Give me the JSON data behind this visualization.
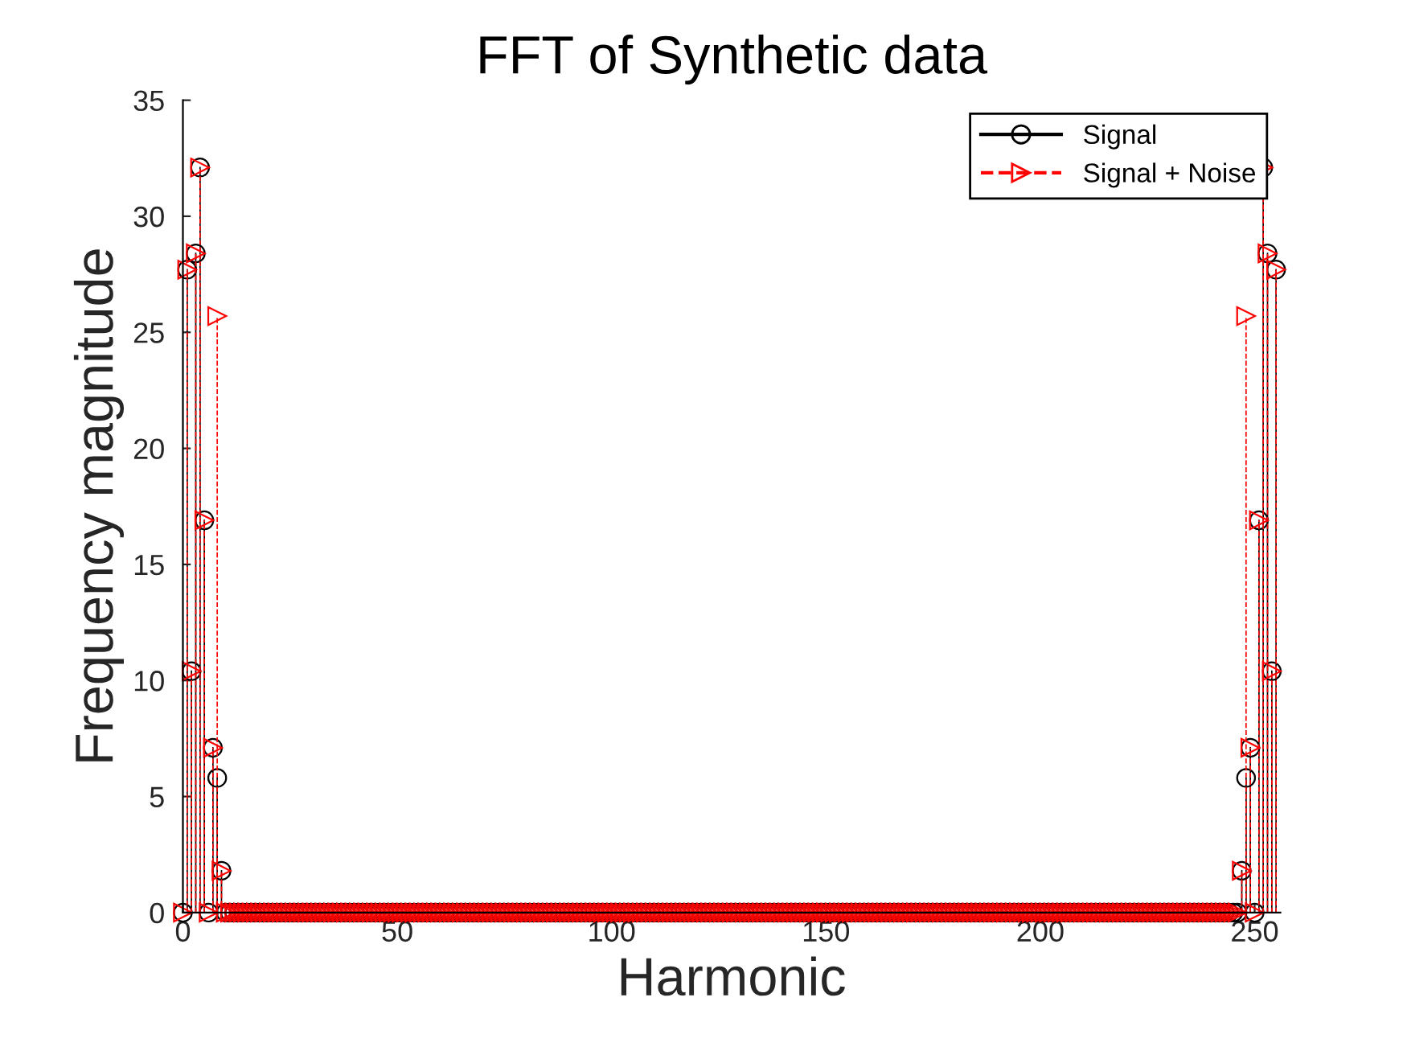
{
  "chart_data": {
    "type": "lollipop",
    "title": "FFT of Synthetic data",
    "xlabel": "Harmonic",
    "ylabel": "Frequency magnitude",
    "x": [
      0,
      1,
      2,
      3,
      4,
      5,
      6,
      7,
      8,
      9,
      10,
      11,
      12,
      13,
      14,
      15,
      16,
      17,
      18,
      19,
      20,
      21,
      22,
      23,
      24,
      25,
      26,
      27,
      28,
      29,
      30,
      31,
      32,
      33,
      34,
      35,
      36,
      37,
      38,
      39,
      40,
      41,
      42,
      43,
      44,
      45,
      46,
      47,
      48,
      49,
      50,
      51,
      52,
      53,
      54,
      55,
      56,
      57,
      58,
      59,
      60,
      61,
      62,
      63,
      64,
      65,
      66,
      67,
      68,
      69,
      70,
      71,
      72,
      73,
      74,
      75,
      76,
      77,
      78,
      79,
      80,
      81,
      82,
      83,
      84,
      85,
      86,
      87,
      88,
      89,
      90,
      91,
      92,
      93,
      94,
      95,
      96,
      97,
      98,
      99,
      100,
      101,
      102,
      103,
      104,
      105,
      106,
      107,
      108,
      109,
      110,
      111,
      112,
      113,
      114,
      115,
      116,
      117,
      118,
      119,
      120,
      121,
      122,
      123,
      124,
      125,
      126,
      127,
      128,
      129,
      130,
      131,
      132,
      133,
      134,
      135,
      136,
      137,
      138,
      139,
      140,
      141,
      142,
      143,
      144,
      145,
      146,
      147,
      148,
      149,
      150,
      151,
      152,
      153,
      154,
      155,
      156,
      157,
      158,
      159,
      160,
      161,
      162,
      163,
      164,
      165,
      166,
      167,
      168,
      169,
      170,
      171,
      172,
      173,
      174,
      175,
      176,
      177,
      178,
      179,
      180,
      181,
      182,
      183,
      184,
      185,
      186,
      187,
      188,
      189,
      190,
      191,
      192,
      193,
      194,
      195,
      196,
      197,
      198,
      199,
      200,
      201,
      202,
      203,
      204,
      205,
      206,
      207,
      208,
      209,
      210,
      211,
      212,
      213,
      214,
      215,
      216,
      217,
      218,
      219,
      220,
      221,
      222,
      223,
      224,
      225,
      226,
      227,
      228,
      229,
      230,
      231,
      232,
      233,
      234,
      235,
      236,
      237,
      238,
      239,
      240,
      241,
      242,
      243,
      244,
      245,
      246,
      247,
      248,
      249,
      250,
      251,
      252,
      253,
      254,
      255
    ],
    "series": [
      {
        "name": "Signal",
        "color": "#000000",
        "marker": "circle",
        "line_style": "solid",
        "values": [
          0,
          27.7,
          10.4,
          28.4,
          32.1,
          16.9,
          0,
          7.1,
          5.8,
          1.8,
          0,
          0,
          0,
          0,
          0,
          0,
          0,
          0,
          0,
          0,
          0,
          0,
          0,
          0,
          0,
          0,
          0,
          0,
          0,
          0,
          0,
          0,
          0,
          0,
          0,
          0,
          0,
          0,
          0,
          0,
          0,
          0,
          0,
          0,
          0,
          0,
          0,
          0,
          0,
          0,
          0,
          0,
          0,
          0,
          0,
          0,
          0,
          0,
          0,
          0,
          0,
          0,
          0,
          0,
          0,
          0,
          0,
          0,
          0,
          0,
          0,
          0,
          0,
          0,
          0,
          0,
          0,
          0,
          0,
          0,
          0,
          0,
          0,
          0,
          0,
          0,
          0,
          0,
          0,
          0,
          0,
          0,
          0,
          0,
          0,
          0,
          0,
          0,
          0,
          0,
          0,
          0,
          0,
          0,
          0,
          0,
          0,
          0,
          0,
          0,
          0,
          0,
          0,
          0,
          0,
          0,
          0,
          0,
          0,
          0,
          0,
          0,
          0,
          0,
          0,
          0,
          0,
          0,
          0,
          0,
          0,
          0,
          0,
          0,
          0,
          0,
          0,
          0,
          0,
          0,
          0,
          0,
          0,
          0,
          0,
          0,
          0,
          0,
          0,
          0,
          0,
          0,
          0,
          0,
          0,
          0,
          0,
          0,
          0,
          0,
          0,
          0,
          0,
          0,
          0,
          0,
          0,
          0,
          0,
          0,
          0,
          0,
          0,
          0,
          0,
          0,
          0,
          0,
          0,
          0,
          0,
          0,
          0,
          0,
          0,
          0,
          0,
          0,
          0,
          0,
          0,
          0,
          0,
          0,
          0,
          0,
          0,
          0,
          0,
          0,
          0,
          0,
          0,
          0,
          0,
          0,
          0,
          0,
          0,
          0,
          0,
          0,
          0,
          0,
          0,
          0,
          0,
          0,
          0,
          0,
          0,
          0,
          0,
          0,
          0,
          0,
          0,
          0,
          0,
          0,
          0,
          0,
          0,
          0,
          0,
          0,
          0,
          0,
          0,
          0,
          0,
          0,
          0,
          0,
          0,
          0,
          0,
          1.8,
          5.8,
          7.1,
          0,
          16.9,
          32.1,
          28.4,
          10.4,
          27.7
        ]
      },
      {
        "name": "Signal + Noise",
        "color": "#ff0000",
        "marker": "triangle",
        "line_style": "dashed",
        "values": [
          0,
          27.7,
          10.4,
          28.4,
          32.1,
          16.9,
          0,
          7.1,
          25.7,
          1.8,
          0,
          0,
          0,
          0,
          0,
          0,
          0,
          0,
          0,
          0,
          0,
          0,
          0,
          0,
          0,
          0,
          0,
          0,
          0,
          0,
          0,
          0,
          0,
          0,
          0,
          0,
          0,
          0,
          0,
          0,
          0,
          0,
          0,
          0,
          0,
          0,
          0,
          0,
          0,
          0,
          0,
          0,
          0,
          0,
          0,
          0,
          0,
          0,
          0,
          0,
          0,
          0,
          0,
          0,
          0,
          0,
          0,
          0,
          0,
          0,
          0,
          0,
          0,
          0,
          0,
          0,
          0,
          0,
          0,
          0,
          0,
          0,
          0,
          0,
          0,
          0,
          0,
          0,
          0,
          0,
          0,
          0,
          0,
          0,
          0,
          0,
          0,
          0,
          0,
          0,
          0,
          0,
          0,
          0,
          0,
          0,
          0,
          0,
          0,
          0,
          0,
          0,
          0,
          0,
          0,
          0,
          0,
          0,
          0,
          0,
          0,
          0,
          0,
          0,
          0,
          0,
          0,
          0,
          0,
          0,
          0,
          0,
          0,
          0,
          0,
          0,
          0,
          0,
          0,
          0,
          0,
          0,
          0,
          0,
          0,
          0,
          0,
          0,
          0,
          0,
          0,
          0,
          0,
          0,
          0,
          0,
          0,
          0,
          0,
          0,
          0,
          0,
          0,
          0,
          0,
          0,
          0,
          0,
          0,
          0,
          0,
          0,
          0,
          0,
          0,
          0,
          0,
          0,
          0,
          0,
          0,
          0,
          0,
          0,
          0,
          0,
          0,
          0,
          0,
          0,
          0,
          0,
          0,
          0,
          0,
          0,
          0,
          0,
          0,
          0,
          0,
          0,
          0,
          0,
          0,
          0,
          0,
          0,
          0,
          0,
          0,
          0,
          0,
          0,
          0,
          0,
          0,
          0,
          0,
          0,
          0,
          0,
          0,
          0,
          0,
          0,
          0,
          0,
          0,
          0,
          0,
          0,
          0,
          0,
          0,
          0,
          0,
          0,
          0,
          0,
          0,
          0,
          0,
          0,
          0,
          0,
          0,
          1.8,
          25.7,
          7.1,
          0,
          16.9,
          32.1,
          28.4,
          10.4,
          27.7
        ]
      }
    ],
    "xlim": [
      0,
      256
    ],
    "xticks": [
      0,
      50,
      100,
      150,
      200,
      250
    ],
    "ylim": [
      0,
      35
    ],
    "yticks": [
      0,
      5,
      10,
      15,
      20,
      25,
      30,
      35
    ],
    "grid": false,
    "legend": "top right"
  }
}
